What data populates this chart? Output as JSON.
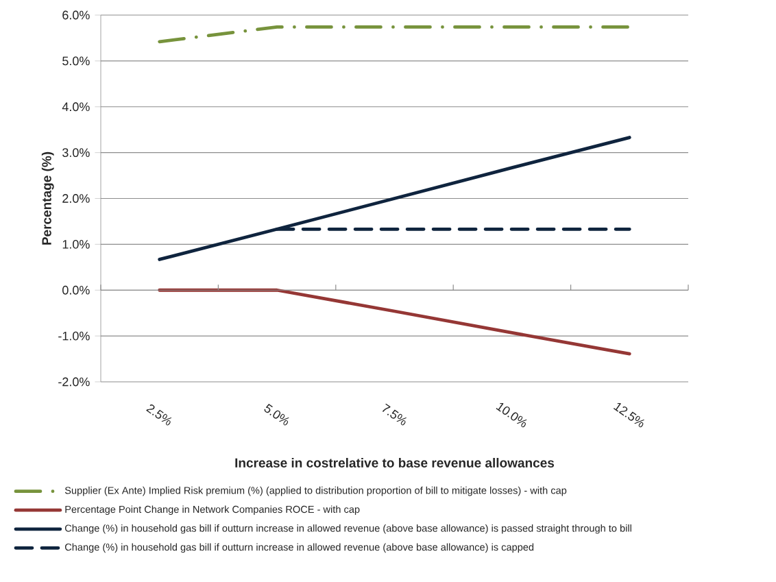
{
  "chart_data": {
    "type": "line",
    "xlabel": "Increase in costrelative to base revenue allowances",
    "ylabel": "Percentage (%)",
    "categories": [
      "2.5%",
      "5.0%",
      "7.5%",
      "10.0%",
      "12.5%"
    ],
    "ylim": [
      -2,
      6
    ],
    "yticks": [
      {
        "value": -2,
        "label": "-2.0%"
      },
      {
        "value": -1,
        "label": "-1.0%"
      },
      {
        "value": 0,
        "label": "0.0%"
      },
      {
        "value": 1,
        "label": "1.0%"
      },
      {
        "value": 2,
        "label": "2.0%"
      },
      {
        "value": 3,
        "label": "3.0%"
      },
      {
        "value": 4,
        "label": "4.0%"
      },
      {
        "value": 5,
        "label": "5.0%"
      },
      {
        "value": 6,
        "label": "6.0%"
      }
    ],
    "grid": "y",
    "legend": "bottom",
    "series": [
      {
        "name": "Supplier (Ex Ante) Implied Risk premium (%) (applied to distribution proportion of bill to mitigate losses) - with cap",
        "color": "#77933c",
        "line_style": "dashdot",
        "values": [
          5.42,
          5.74,
          5.74,
          5.74,
          5.74
        ]
      },
      {
        "name": "Percentage Point Change in Network Companies ROCE - with cap",
        "color": "#953735",
        "line_style": "solid",
        "values": [
          0,
          0,
          -0.46,
          -0.93,
          -1.39
        ]
      },
      {
        "name": "Change (%) in household gas bill if outturn increase in allowed revenue (above base allowance) is passed straight through to bill",
        "color": "#0f243e",
        "line_style": "solid",
        "values": [
          0.67,
          1.33,
          2.0,
          2.67,
          3.33
        ]
      },
      {
        "name": "Change (%) in household gas bill if outturn increase in allowed revenue (above base allowance) is capped",
        "color": "#0f243e",
        "line_style": "dashed",
        "values": [
          null,
          1.33,
          1.33,
          1.33,
          1.33
        ]
      }
    ]
  }
}
